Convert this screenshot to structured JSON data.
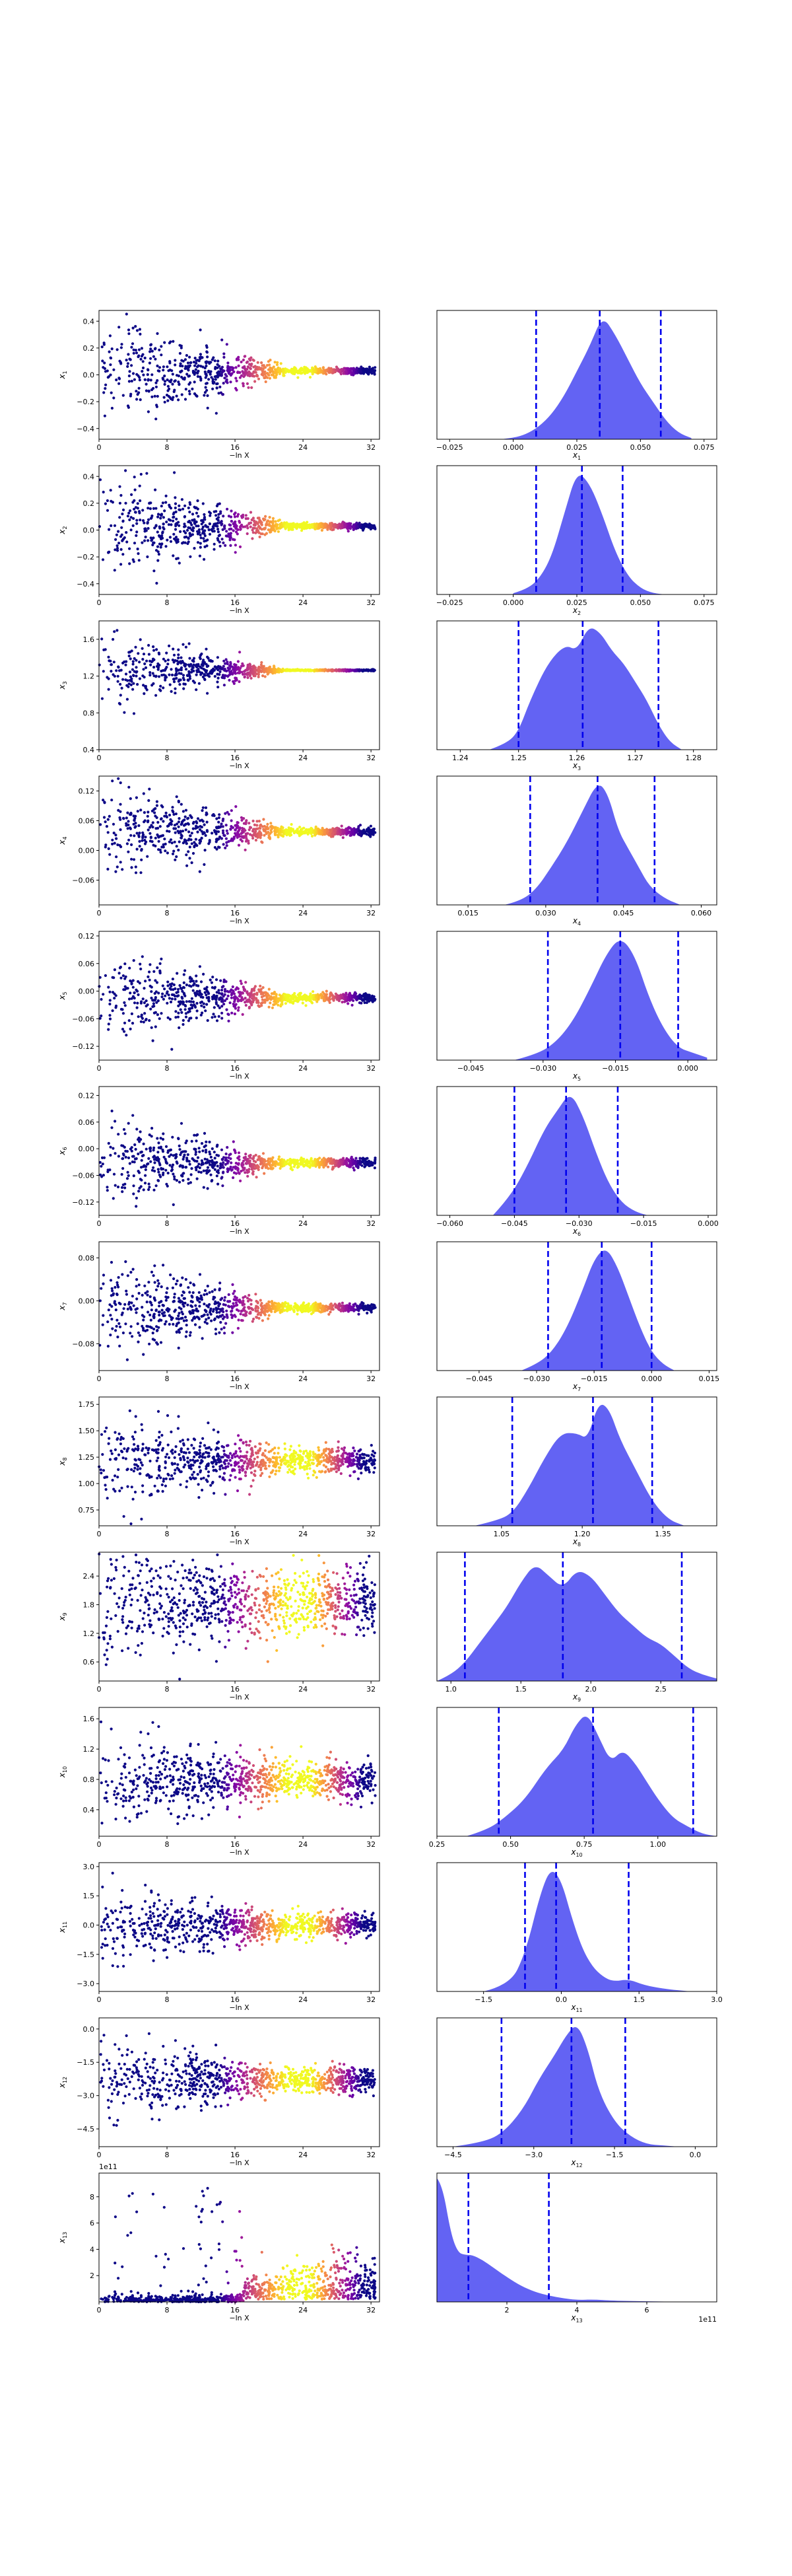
{
  "figure": {
    "xlabel_left": "−ln X",
    "left_xticks": [
      0,
      8,
      16,
      24,
      32
    ],
    "left_xlim": [
      0,
      33
    ],
    "colormap": "plasma",
    "right_fill_color": "#5b5bf2",
    "right_line_color": "#0000ee"
  },
  "chart_data": [
    {
      "type": "scatter",
      "row": 1,
      "ylabel": "x1",
      "yticks": [
        -0.4,
        -0.2,
        0.0,
        0.2,
        0.4
      ],
      "ylim": [
        -0.48,
        0.48
      ],
      "trace": {
        "center": 0.03,
        "initial_spread": 0.2,
        "final_spread": 0.012
      }
    },
    {
      "type": "area",
      "row": 1,
      "xlabel": "x1",
      "xticks": [
        -0.025,
        0.0,
        0.025,
        0.05,
        0.075
      ],
      "xlim": [
        -0.03,
        0.08
      ],
      "quantiles": [
        0.009,
        0.034,
        0.058
      ],
      "density": {
        "x": [
          -0.005,
          0.0,
          0.005,
          0.01,
          0.015,
          0.02,
          0.025,
          0.03,
          0.035,
          0.04,
          0.045,
          0.05,
          0.055,
          0.06,
          0.065,
          0.07
        ],
        "y": [
          0.0,
          0.01,
          0.04,
          0.1,
          0.2,
          0.35,
          0.55,
          0.75,
          1.0,
          0.85,
          0.65,
          0.45,
          0.3,
          0.15,
          0.05,
          0.01
        ]
      }
    },
    {
      "type": "scatter",
      "row": 2,
      "ylabel": "x2",
      "yticks": [
        -0.4,
        -0.2,
        0.0,
        0.2,
        0.4
      ],
      "ylim": [
        -0.48,
        0.48
      ],
      "trace": {
        "center": 0.03,
        "initial_spread": 0.2,
        "final_spread": 0.012
      }
    },
    {
      "type": "area",
      "row": 2,
      "xlabel": "x2",
      "xticks": [
        -0.025,
        0.0,
        0.025,
        0.05,
        0.075
      ],
      "xlim": [
        -0.03,
        0.08
      ],
      "quantiles": [
        0.009,
        0.027,
        0.043
      ],
      "density": {
        "x": [
          0.0,
          0.005,
          0.01,
          0.015,
          0.02,
          0.025,
          0.03,
          0.035,
          0.04,
          0.045,
          0.05,
          0.055,
          0.06
        ],
        "y": [
          0.01,
          0.04,
          0.12,
          0.3,
          0.65,
          1.0,
          0.9,
          0.65,
          0.35,
          0.15,
          0.05,
          0.01,
          0.0
        ]
      }
    },
    {
      "type": "scatter",
      "row": 3,
      "ylabel": "x3",
      "yticks": [
        0.4,
        0.8,
        1.2,
        1.6
      ],
      "ylim": [
        0.4,
        1.8
      ],
      "trace": {
        "center": 1.263,
        "initial_spread": 0.2,
        "final_spread": 0.004
      }
    },
    {
      "type": "area",
      "row": 3,
      "xlabel": "x3",
      "xticks": [
        1.24,
        1.25,
        1.26,
        1.27,
        1.28
      ],
      "xlim": [
        1.236,
        1.284
      ],
      "quantiles": [
        1.25,
        1.261,
        1.274
      ],
      "density": {
        "x": [
          1.245,
          1.248,
          1.25,
          1.252,
          1.255,
          1.258,
          1.26,
          1.262,
          1.264,
          1.266,
          1.268,
          1.27,
          1.272,
          1.274,
          1.276,
          1.278
        ],
        "y": [
          0.0,
          0.05,
          0.15,
          0.4,
          0.7,
          0.85,
          0.8,
          1.0,
          0.95,
          0.8,
          0.7,
          0.55,
          0.4,
          0.2,
          0.06,
          0.0
        ]
      }
    },
    {
      "type": "scatter",
      "row": 4,
      "ylabel": "x4",
      "yticks": [
        -0.06,
        0.0,
        0.06,
        0.12
      ],
      "ylim": [
        -0.11,
        0.15
      ],
      "trace": {
        "center": 0.038,
        "initial_spread": 0.05,
        "final_spread": 0.004
      }
    },
    {
      "type": "area",
      "row": 4,
      "xlabel": "x4",
      "xticks": [
        0.015,
        0.03,
        0.045,
        0.06
      ],
      "xlim": [
        0.009,
        0.063
      ],
      "quantiles": [
        0.027,
        0.04,
        0.051
      ],
      "density": {
        "x": [
          0.022,
          0.025,
          0.028,
          0.031,
          0.034,
          0.037,
          0.04,
          0.042,
          0.044,
          0.046,
          0.048,
          0.05,
          0.053,
          0.056
        ],
        "y": [
          0.0,
          0.03,
          0.12,
          0.3,
          0.5,
          0.75,
          1.0,
          0.9,
          0.6,
          0.45,
          0.3,
          0.15,
          0.05,
          0.0
        ]
      }
    },
    {
      "type": "scatter",
      "row": 5,
      "ylabel": "x5",
      "yticks": [
        -0.12,
        -0.06,
        0.0,
        0.06,
        0.12
      ],
      "ylim": [
        -0.15,
        0.13
      ],
      "trace": {
        "center": -0.015,
        "initial_spread": 0.05,
        "final_spread": 0.005
      }
    },
    {
      "type": "area",
      "row": 5,
      "xlabel": "x5",
      "xticks": [
        -0.045,
        -0.03,
        -0.015,
        0.0
      ],
      "xlim": [
        -0.052,
        0.006
      ],
      "quantiles": [
        -0.029,
        -0.014,
        -0.002
      ],
      "density": {
        "x": [
          -0.036,
          -0.032,
          -0.028,
          -0.024,
          -0.02,
          -0.017,
          -0.014,
          -0.011,
          -0.008,
          -0.005,
          -0.002,
          0.001,
          0.004
        ],
        "y": [
          0.0,
          0.04,
          0.12,
          0.3,
          0.6,
          0.85,
          1.0,
          0.85,
          0.5,
          0.25,
          0.1,
          0.06,
          0.02
        ]
      }
    },
    {
      "type": "scatter",
      "row": 6,
      "ylabel": "x6",
      "yticks": [
        -0.12,
        -0.06,
        0.0,
        0.06,
        0.12
      ],
      "ylim": [
        -0.15,
        0.14
      ],
      "trace": {
        "center": -0.032,
        "initial_spread": 0.05,
        "final_spread": 0.005
      }
    },
    {
      "type": "area",
      "row": 6,
      "xlabel": "x6",
      "xticks": [
        -0.06,
        -0.045,
        -0.03,
        -0.015,
        0.0
      ],
      "xlim": [
        -0.063,
        0.002
      ],
      "quantiles": [
        -0.045,
        -0.033,
        -0.021
      ],
      "density": {
        "x": [
          -0.05,
          -0.046,
          -0.042,
          -0.038,
          -0.035,
          -0.032,
          -0.029,
          -0.026,
          -0.023,
          -0.02,
          -0.017,
          -0.014
        ],
        "y": [
          0.0,
          0.15,
          0.4,
          0.7,
          0.85,
          1.0,
          0.8,
          0.5,
          0.25,
          0.1,
          0.03,
          0.0
        ]
      }
    },
    {
      "type": "scatter",
      "row": 7,
      "ylabel": "x7",
      "yticks": [
        -0.08,
        0.0,
        0.08
      ],
      "ylim": [
        -0.13,
        0.11
      ],
      "trace": {
        "center": -0.013,
        "initial_spread": 0.045,
        "final_spread": 0.004
      }
    },
    {
      "type": "area",
      "row": 7,
      "xlabel": "x7",
      "xticks": [
        -0.045,
        -0.03,
        -0.015,
        0.0,
        0.015
      ],
      "xlim": [
        -0.056,
        0.017
      ],
      "quantiles": [
        -0.027,
        -0.013,
        0.0
      ],
      "density": {
        "x": [
          -0.034,
          -0.03,
          -0.026,
          -0.022,
          -0.018,
          -0.015,
          -0.012,
          -0.009,
          -0.006,
          -0.003,
          0.0,
          0.003,
          0.006
        ],
        "y": [
          0.0,
          0.05,
          0.15,
          0.35,
          0.65,
          0.9,
          1.0,
          0.85,
          0.6,
          0.35,
          0.15,
          0.05,
          0.0
        ]
      }
    },
    {
      "type": "scatter",
      "row": 8,
      "ylabel": "x8",
      "yticks": [
        0.75,
        1.0,
        1.25,
        1.5,
        1.75
      ],
      "ylim": [
        0.6,
        1.82
      ],
      "trace": {
        "center": 1.22,
        "initial_spread": 0.22,
        "final_spread": 0.06
      }
    },
    {
      "type": "area",
      "row": 8,
      "xlabel": "x8",
      "xticks": [
        1.05,
        1.2,
        1.35
      ],
      "xlim": [
        0.93,
        1.45
      ],
      "quantiles": [
        1.07,
        1.22,
        1.33
      ],
      "density": {
        "x": [
          1.0,
          1.04,
          1.07,
          1.1,
          1.13,
          1.16,
          1.19,
          1.21,
          1.23,
          1.25,
          1.27,
          1.3,
          1.33,
          1.36,
          1.39
        ],
        "y": [
          0.0,
          0.04,
          0.1,
          0.3,
          0.55,
          0.75,
          0.75,
          0.7,
          1.0,
          0.95,
          0.7,
          0.45,
          0.2,
          0.05,
          0.0
        ]
      }
    },
    {
      "type": "scatter",
      "row": 9,
      "ylabel": "x9",
      "yticks": [
        0.6,
        1.2,
        1.8,
        2.4
      ],
      "ylim": [
        0.2,
        2.9
      ],
      "trace": {
        "center": 1.85,
        "initial_spread": 0.6,
        "final_spread": 0.35
      }
    },
    {
      "type": "area",
      "row": 9,
      "xlabel": "x9",
      "xticks": [
        1.0,
        1.5,
        2.0,
        2.5
      ],
      "xlim": [
        0.9,
        2.9
      ],
      "quantiles": [
        1.1,
        1.8,
        2.65
      ],
      "density": {
        "x": [
          0.9,
          1.0,
          1.1,
          1.2,
          1.3,
          1.4,
          1.5,
          1.6,
          1.7,
          1.8,
          1.9,
          2.0,
          2.1,
          2.2,
          2.3,
          2.4,
          2.5,
          2.6,
          2.7,
          2.8,
          2.9
        ],
        "y": [
          0.0,
          0.05,
          0.15,
          0.3,
          0.45,
          0.6,
          0.8,
          0.95,
          0.85,
          0.75,
          0.9,
          0.85,
          0.7,
          0.55,
          0.45,
          0.35,
          0.3,
          0.2,
          0.1,
          0.05,
          0.02
        ]
      }
    },
    {
      "type": "scatter",
      "row": 10,
      "ylabel": "x10",
      "yticks": [
        0.4,
        0.8,
        1.2,
        1.6
      ],
      "ylim": [
        0.05,
        1.75
      ],
      "trace": {
        "center": 0.78,
        "initial_spread": 0.28,
        "final_spread": 0.12
      }
    },
    {
      "type": "area",
      "row": 10,
      "xlabel": "x10",
      "xticks": [
        0.25,
        0.5,
        0.75,
        1.0
      ],
      "xlim": [
        0.25,
        1.2
      ],
      "quantiles": [
        0.46,
        0.78,
        1.12
      ],
      "density": {
        "x": [
          0.35,
          0.42,
          0.48,
          0.55,
          0.62,
          0.68,
          0.72,
          0.76,
          0.8,
          0.84,
          0.88,
          0.92,
          0.96,
          1.0,
          1.05,
          1.1,
          1.15,
          1.2
        ],
        "y": [
          0.0,
          0.05,
          0.15,
          0.3,
          0.55,
          0.7,
          0.9,
          1.0,
          0.8,
          0.6,
          0.7,
          0.6,
          0.45,
          0.3,
          0.15,
          0.08,
          0.02,
          0.0
        ]
      }
    },
    {
      "type": "scatter",
      "row": 11,
      "ylabel": "x11",
      "yticks": [
        -3.0,
        -1.5,
        0.0,
        1.5,
        3.0
      ],
      "ylim": [
        -3.4,
        3.2
      ],
      "trace": {
        "center": 0.0,
        "initial_spread": 1.0,
        "final_spread": 0.3
      }
    },
    {
      "type": "area",
      "row": 11,
      "xlabel": "x11",
      "xticks": [
        -1.5,
        0.0,
        1.5,
        3.0
      ],
      "xlim": [
        -2.4,
        3.0
      ],
      "quantiles": [
        -0.7,
        -0.1,
        1.3
      ],
      "density": {
        "x": [
          -1.5,
          -1.0,
          -0.7,
          -0.4,
          -0.2,
          0.0,
          0.2,
          0.4,
          0.6,
          0.8,
          1.0,
          1.3,
          1.6,
          2.0,
          2.5
        ],
        "y": [
          0.0,
          0.05,
          0.3,
          0.8,
          1.0,
          0.9,
          0.6,
          0.35,
          0.2,
          0.12,
          0.08,
          0.1,
          0.05,
          0.02,
          0.0
        ]
      }
    },
    {
      "type": "scatter",
      "row": 12,
      "ylabel": "x12",
      "yticks": [
        -4.5,
        -3.0,
        -1.5,
        0.0
      ],
      "ylim": [
        -5.3,
        0.5
      ],
      "trace": {
        "center": -2.3,
        "initial_spread": 0.9,
        "final_spread": 0.3
      }
    },
    {
      "type": "area",
      "row": 12,
      "xlabel": "x12",
      "xticks": [
        -4.5,
        -3.0,
        -1.5,
        0.0
      ],
      "xlim": [
        -4.8,
        0.4
      ],
      "quantiles": [
        -3.6,
        -2.3,
        -1.3
      ],
      "density": {
        "x": [
          -4.5,
          -4.0,
          -3.6,
          -3.2,
          -2.9,
          -2.6,
          -2.4,
          -2.2,
          -2.0,
          -1.8,
          -1.5,
          -1.2,
          -0.9,
          -0.6,
          -0.3
        ],
        "y": [
          0.0,
          0.03,
          0.1,
          0.3,
          0.55,
          0.75,
          0.9,
          1.0,
          0.8,
          0.45,
          0.2,
          0.08,
          0.02,
          0.01,
          0.0
        ]
      }
    },
    {
      "type": "scatter",
      "row": 13,
      "ylabel": "x13",
      "yticks": [
        2,
        4,
        6,
        8
      ],
      "ylim": [
        0.0,
        9.8
      ],
      "offset_label": "1e11",
      "trace": {
        "center": 0.4,
        "initial_spread": 0.0,
        "final_spread": 0.0
      }
    },
    {
      "type": "area",
      "row": 13,
      "xlabel": "x13",
      "xticks": [
        2,
        4,
        6
      ],
      "xlim": [
        0.0,
        8.0
      ],
      "offset_label": "1e11",
      "quantiles": [
        0.9,
        3.2,
        null
      ],
      "density": {
        "x": [
          0.0,
          0.15,
          0.4,
          0.6,
          0.8,
          1.0,
          1.3,
          1.6,
          2.0,
          2.4,
          2.8,
          3.2,
          3.6,
          4.0,
          4.5,
          5.0,
          6.0,
          7.0,
          8.0
        ],
        "y": [
          1.0,
          0.95,
          0.55,
          0.4,
          0.38,
          0.38,
          0.34,
          0.28,
          0.2,
          0.13,
          0.08,
          0.05,
          0.03,
          0.015,
          0.02,
          0.01,
          0.005,
          0.0,
          0.0
        ]
      }
    }
  ]
}
